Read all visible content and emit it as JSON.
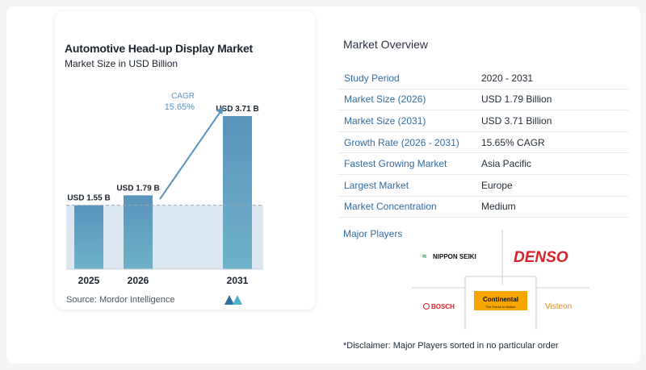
{
  "chart_data": {
    "type": "bar",
    "title": "Automotive Head-up Display Market",
    "subtitle": "Market Size in USD Billion",
    "categories": [
      "2025",
      "2026",
      "2031"
    ],
    "values": [
      1.55,
      1.79,
      3.71
    ],
    "value_labels": [
      "USD 1.55 B",
      "USD 1.79 B",
      "USD 3.71 B"
    ],
    "cagr_label": "CAGR",
    "cagr_value": "15.65%",
    "ylim": [
      0,
      4.1
    ],
    "grid": false,
    "colors": {
      "bar": "#5b98bd",
      "shade": "#dde7f0",
      "arrow": "#5a94bf"
    }
  },
  "source": "Source:  Mordor Intelligence",
  "overview": {
    "title": "Market Overview",
    "rows": [
      {
        "key": "Study Period",
        "value": "2020 - 2031"
      },
      {
        "key": "Market Size (2026)",
        "value": "USD 1.79 Billion"
      },
      {
        "key": "Market Size (2031)",
        "value": "USD 3.71 Billion"
      },
      {
        "key": "Growth Rate (2026 - 2031)",
        "value": "15.65% CAGR"
      },
      {
        "key": "Fastest Growing Market",
        "value": "Asia Pacific"
      },
      {
        "key": "Largest Market",
        "value": "Europe"
      },
      {
        "key": "Market Concentration",
        "value": "Medium"
      }
    ]
  },
  "players": {
    "title": "Major Players",
    "logos": [
      "NIPPON SEIKI",
      "DENSO",
      "BOSCH",
      "Continental",
      "Visteon"
    ],
    "continental_tagline": "The Future in Motion"
  },
  "disclaimer": "*Disclaimer: Major Players sorted in no particular order"
}
